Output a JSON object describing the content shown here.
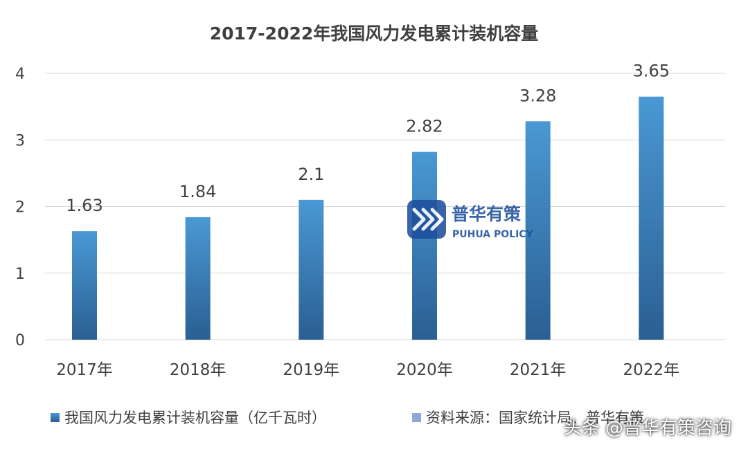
{
  "chart_data": {
    "type": "bar",
    "title": "2017-2022年我国风力发电累计装机容量",
    "categories": [
      "2017年",
      "2018年",
      "2019年",
      "2020年",
      "2021年",
      "2022年"
    ],
    "series": [
      {
        "name": "我国风力发电累计装机容量（亿千瓦时）",
        "values": [
          1.63,
          1.84,
          2.1,
          2.82,
          3.28,
          3.65
        ]
      }
    ],
    "data_labels": [
      "1.63",
      "1.84",
      "2.1",
      "2.82",
      "3.28",
      "3.65"
    ],
    "y_ticks": [
      "0",
      "1",
      "2",
      "3",
      "4"
    ],
    "ylim": [
      0,
      4
    ],
    "grid": true,
    "legend_position": "bottom-left",
    "colors": {
      "bar_top": "#4a98d4",
      "bar_bottom": "#2a5f92",
      "grid": "#d9d9d9",
      "text": "#404040"
    }
  },
  "source_note": "资料来源：国家统计局、普华有策",
  "watermark": {
    "name_cn": "普华有策",
    "name_en": "PUHUA POLICY"
  },
  "footer_credit": "头条 @普华有策咨询"
}
